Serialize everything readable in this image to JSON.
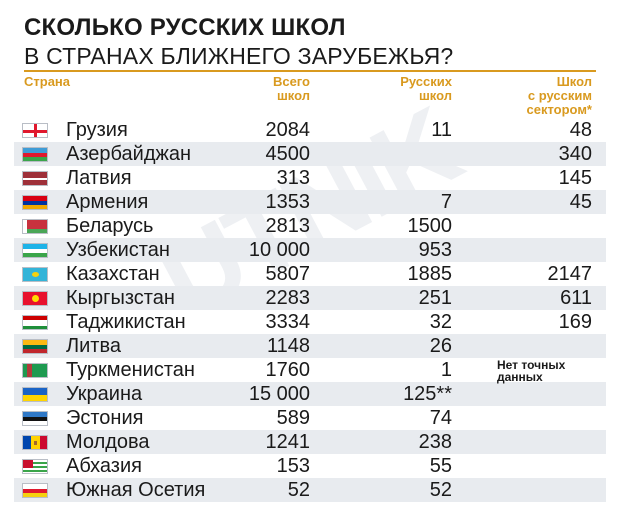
{
  "title_line1": "СКОЛЬКО РУССКИХ ШКОЛ",
  "title_line2": "В СТРАНАХ БЛИЖНЕГО ЗАРУБЕЖЬЯ?",
  "watermark": "UTNIK",
  "headers": {
    "country": "Страна",
    "total_line1": "Всего",
    "total_line2": "школ",
    "russian_line1": "Русских",
    "russian_line2": "школ",
    "sector_line1": "Школ",
    "sector_line2": "с русским",
    "sector_line3": "сектором*"
  },
  "no_data_note_line1": "Нет точных",
  "no_data_note_line2": "данных",
  "colors": {
    "accent": "#d99a1f",
    "row_shade": "#e8ebef"
  },
  "chart_data": {
    "type": "table",
    "title": "СКОЛЬКО РУССКИХ ШКОЛ В СТРАНАХ БЛИЖНЕГО ЗАРУБЕЖЬЯ?",
    "columns": [
      "Страна",
      "Всего школ",
      "Русских школ",
      "Школ с русским сектором*"
    ],
    "rows": [
      {
        "country": "Грузия",
        "flag": "georgia-flag",
        "total": "2084",
        "russian": "11",
        "sector": "48"
      },
      {
        "country": "Азербайджан",
        "flag": "azerbaijan-flag",
        "total": "4500",
        "russian": "",
        "sector": "340"
      },
      {
        "country": "Латвия",
        "flag": "latvia-flag",
        "total": "313",
        "russian": "",
        "sector": "145"
      },
      {
        "country": "Армения",
        "flag": "armenia-flag",
        "total": "1353",
        "russian": "7",
        "sector": "45"
      },
      {
        "country": "Беларусь",
        "flag": "belarus-flag",
        "total": "2813",
        "russian": "1500",
        "sector": ""
      },
      {
        "country": "Узбекистан",
        "flag": "uzbekistan-flag",
        "total": "10 000",
        "russian": "953",
        "sector": ""
      },
      {
        "country": "Казахстан",
        "flag": "kazakhstan-flag",
        "total": "5807",
        "russian": "1885",
        "sector": "2147"
      },
      {
        "country": "Кыргызстан",
        "flag": "kyrgyzstan-flag",
        "total": "2283",
        "russian": "251",
        "sector": "611"
      },
      {
        "country": "Таджикистан",
        "flag": "tajikistan-flag",
        "total": "3334",
        "russian": "32",
        "sector": "169"
      },
      {
        "country": "Литва",
        "flag": "lithuania-flag",
        "total": "1148",
        "russian": "26",
        "sector": ""
      },
      {
        "country": "Туркменистан",
        "flag": "turkmenistan-flag",
        "total": "1760",
        "russian": "1",
        "sector": ""
      },
      {
        "country": "Украина",
        "flag": "ukraine-flag",
        "total": "15 000",
        "russian": "125**",
        "sector": ""
      },
      {
        "country": "Эстония",
        "flag": "estonia-flag",
        "total": "589",
        "russian": "74",
        "sector": ""
      },
      {
        "country": "Молдова",
        "flag": "moldova-flag",
        "total": "1241",
        "russian": "238",
        "sector": ""
      },
      {
        "country": "Абхазия",
        "flag": "abkhazia-flag",
        "total": "153",
        "russian": "55",
        "sector": ""
      },
      {
        "country": "Южная Осетия",
        "flag": "south-ossetia-flag",
        "total": "52",
        "russian": "52",
        "sector": ""
      }
    ]
  }
}
